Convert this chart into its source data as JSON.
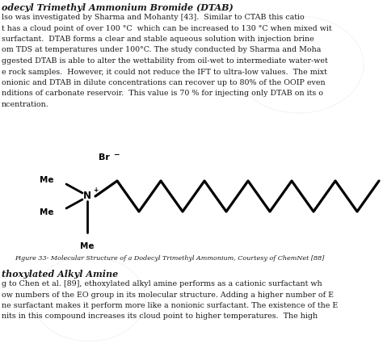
{
  "title": "odecyl Trimethyl Ammonium Bromide (DTAB)",
  "body_text": [
    "lso was investigated by Sharma and Mohanty [43].  Similar to CTAB this catio",
    "t has a cloud point of over 100 °C  which can be increased to 130 °C when mixed wit",
    "surfactant.  DTAB forms a clear and stable aqueous solution with injection brine",
    "om TDS at temperatures under 100°C. The study conducted by Sharma and Moha",
    "ggested DTAB is able to alter the wettability from oil-wet to intermediate water-wet",
    "e rock samples.  However, it could not reduce the IFT to ultra-low values.  The mixt",
    "onionic and DTAB in dilute concentrations can recover up to 80% of the OOIP even",
    "nditions of carbonate reservoir.  This value is 70 % for injecting only DTAB on its o",
    "ncentration."
  ],
  "caption": "Figure 33- Molecular Structure of a Dodecyl Trimethyl Ammonium, Courtesy of ChemNet [88]",
  "bottom_heading": "thoxylated Alkyl Amine",
  "bottom_text": [
    "g to Chen et al. [89], ethoxylated alkyl amine performs as a cationic surfactant wh",
    "ow numbers of the EO group in its molecular structure. Adding a higher number of E",
    "ne surfactant makes it perform more like a nonionic surfactant. The existence of the E",
    "nits in this compound increases its cloud point to higher temperatures.  The high"
  ],
  "bg_color": "#ffffff",
  "text_color": "#1a1a1a",
  "line_color": "#000000",
  "line_width": 2.0
}
